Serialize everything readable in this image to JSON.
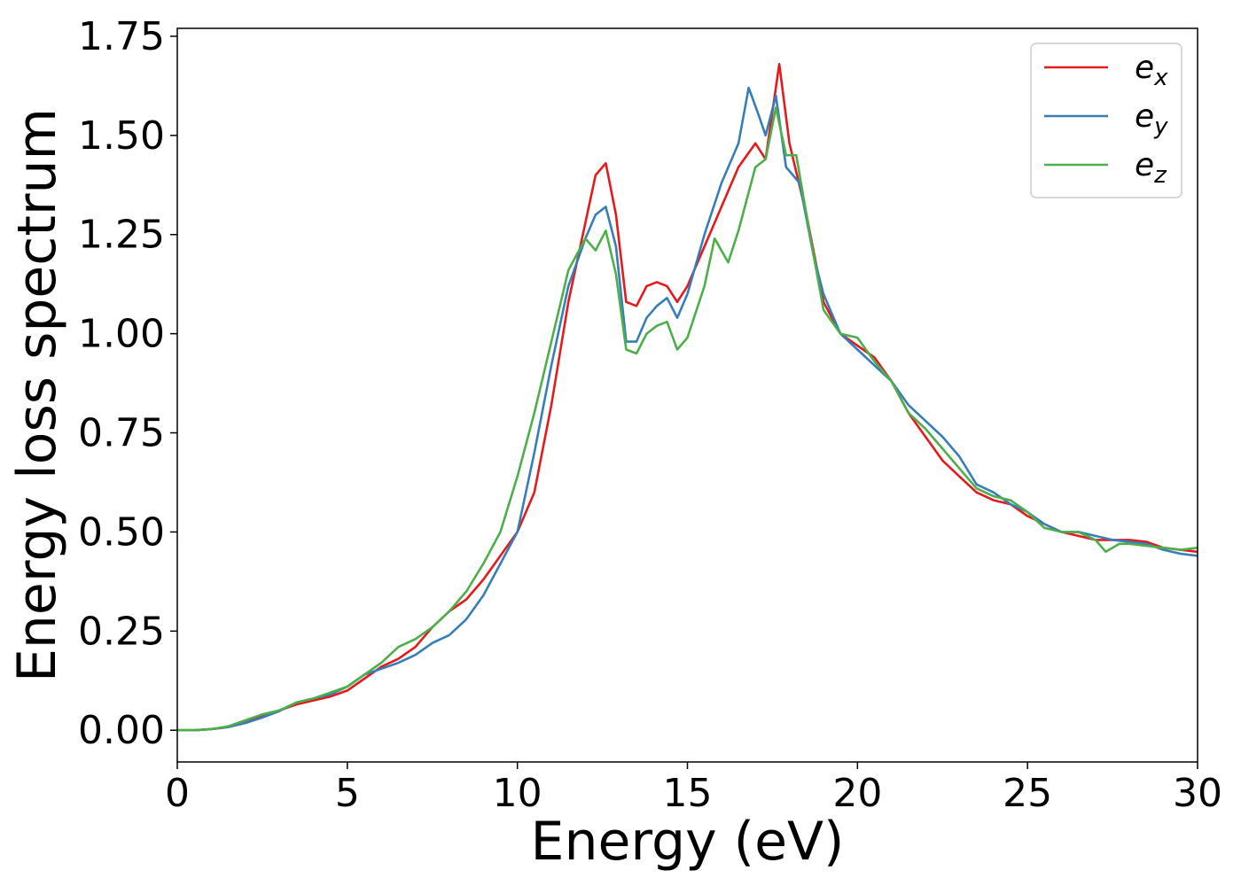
{
  "chart_data": {
    "type": "line",
    "title": "",
    "xlabel": "Energy (eV)",
    "ylabel": "Energy loss spectrum",
    "xlim": [
      0,
      30
    ],
    "ylim": [
      -0.08,
      1.77
    ],
    "xticks": [
      0,
      5,
      10,
      15,
      20,
      25,
      30
    ],
    "xtick_labels": [
      "0",
      "5",
      "10",
      "15",
      "20",
      "25",
      "30"
    ],
    "yticks": [
      0.0,
      0.25,
      0.5,
      0.75,
      1.0,
      1.25,
      1.5,
      1.75
    ],
    "ytick_labels": [
      "0.00",
      "0.25",
      "0.50",
      "0.75",
      "1.00",
      "1.25",
      "1.50",
      "1.75"
    ],
    "grid": false,
    "legend_position": "top-right",
    "series": [
      {
        "name": "e_x",
        "legend_base": "e",
        "legend_sub": "x",
        "color": "#e41a1c",
        "points": [
          [
            0,
            0
          ],
          [
            0.5,
            0.0
          ],
          [
            1,
            0.003
          ],
          [
            1.5,
            0.008
          ],
          [
            2,
            0.02
          ],
          [
            2.5,
            0.035
          ],
          [
            3,
            0.05
          ],
          [
            3.5,
            0.065
          ],
          [
            4,
            0.075
          ],
          [
            4.5,
            0.085
          ],
          [
            5,
            0.1
          ],
          [
            5.5,
            0.13
          ],
          [
            6,
            0.16
          ],
          [
            6.5,
            0.18
          ],
          [
            7,
            0.21
          ],
          [
            7.5,
            0.26
          ],
          [
            8,
            0.3
          ],
          [
            8.5,
            0.33
          ],
          [
            9,
            0.38
          ],
          [
            9.5,
            0.44
          ],
          [
            10,
            0.5
          ],
          [
            10.5,
            0.6
          ],
          [
            11,
            0.82
          ],
          [
            11.5,
            1.08
          ],
          [
            12,
            1.28
          ],
          [
            12.3,
            1.4
          ],
          [
            12.6,
            1.43
          ],
          [
            12.9,
            1.3
          ],
          [
            13.2,
            1.08
          ],
          [
            13.5,
            1.07
          ],
          [
            13.8,
            1.12
          ],
          [
            14.1,
            1.13
          ],
          [
            14.4,
            1.12
          ],
          [
            14.7,
            1.08
          ],
          [
            15,
            1.12
          ],
          [
            15.5,
            1.22
          ],
          [
            16,
            1.32
          ],
          [
            16.5,
            1.42
          ],
          [
            17,
            1.48
          ],
          [
            17.3,
            1.44
          ],
          [
            17.7,
            1.68
          ],
          [
            18,
            1.48
          ],
          [
            18.5,
            1.3
          ],
          [
            19,
            1.08
          ],
          [
            19.5,
            1.0
          ],
          [
            20,
            0.97
          ],
          [
            20.5,
            0.94
          ],
          [
            21,
            0.88
          ],
          [
            21.5,
            0.8
          ],
          [
            22,
            0.74
          ],
          [
            22.5,
            0.68
          ],
          [
            23,
            0.64
          ],
          [
            23.5,
            0.6
          ],
          [
            24,
            0.58
          ],
          [
            24.5,
            0.57
          ],
          [
            25,
            0.54
          ],
          [
            25.5,
            0.52
          ],
          [
            26,
            0.5
          ],
          [
            26.5,
            0.49
          ],
          [
            27,
            0.48
          ],
          [
            27.5,
            0.48
          ],
          [
            28,
            0.48
          ],
          [
            28.5,
            0.475
          ],
          [
            29,
            0.46
          ],
          [
            29.5,
            0.455
          ],
          [
            30,
            0.45
          ]
        ]
      },
      {
        "name": "e_y",
        "legend_base": "e",
        "legend_sub": "y",
        "color": "#377eb8",
        "points": [
          [
            0,
            0
          ],
          [
            0.5,
            0.0
          ],
          [
            1,
            0.003
          ],
          [
            1.5,
            0.008
          ],
          [
            2,
            0.018
          ],
          [
            2.5,
            0.032
          ],
          [
            3,
            0.048
          ],
          [
            3.5,
            0.07
          ],
          [
            4,
            0.08
          ],
          [
            4.5,
            0.09
          ],
          [
            5,
            0.11
          ],
          [
            5.5,
            0.14
          ],
          [
            6,
            0.155
          ],
          [
            6.5,
            0.17
          ],
          [
            7,
            0.19
          ],
          [
            7.5,
            0.22
          ],
          [
            8,
            0.24
          ],
          [
            8.5,
            0.28
          ],
          [
            9,
            0.34
          ],
          [
            9.5,
            0.42
          ],
          [
            10,
            0.5
          ],
          [
            10.5,
            0.7
          ],
          [
            11,
            0.92
          ],
          [
            11.5,
            1.12
          ],
          [
            12,
            1.24
          ],
          [
            12.3,
            1.3
          ],
          [
            12.6,
            1.32
          ],
          [
            12.9,
            1.22
          ],
          [
            13.2,
            0.98
          ],
          [
            13.5,
            0.98
          ],
          [
            13.8,
            1.04
          ],
          [
            14.1,
            1.07
          ],
          [
            14.4,
            1.09
          ],
          [
            14.7,
            1.04
          ],
          [
            15,
            1.1
          ],
          [
            15.5,
            1.25
          ],
          [
            16,
            1.38
          ],
          [
            16.5,
            1.48
          ],
          [
            16.8,
            1.62
          ],
          [
            17.1,
            1.55
          ],
          [
            17.3,
            1.5
          ],
          [
            17.6,
            1.6
          ],
          [
            17.9,
            1.42
          ],
          [
            18.3,
            1.38
          ],
          [
            18.7,
            1.2
          ],
          [
            19,
            1.1
          ],
          [
            19.5,
            1.0
          ],
          [
            20,
            0.96
          ],
          [
            20.5,
            0.92
          ],
          [
            21,
            0.88
          ],
          [
            21.5,
            0.82
          ],
          [
            22,
            0.78
          ],
          [
            22.5,
            0.74
          ],
          [
            23,
            0.69
          ],
          [
            23.5,
            0.62
          ],
          [
            24,
            0.6
          ],
          [
            24.5,
            0.57
          ],
          [
            25,
            0.55
          ],
          [
            25.5,
            0.52
          ],
          [
            26,
            0.5
          ],
          [
            26.5,
            0.5
          ],
          [
            27,
            0.49
          ],
          [
            27.5,
            0.48
          ],
          [
            28,
            0.475
          ],
          [
            28.5,
            0.47
          ],
          [
            29,
            0.455
          ],
          [
            29.5,
            0.445
          ],
          [
            30,
            0.44
          ]
        ]
      },
      {
        "name": "e_z",
        "legend_base": "e",
        "legend_sub": "z",
        "color": "#4daf4a",
        "points": [
          [
            0,
            0
          ],
          [
            0.5,
            0.0
          ],
          [
            1,
            0.003
          ],
          [
            1.5,
            0.01
          ],
          [
            2,
            0.025
          ],
          [
            2.5,
            0.04
          ],
          [
            3,
            0.05
          ],
          [
            3.5,
            0.07
          ],
          [
            4,
            0.08
          ],
          [
            4.5,
            0.095
          ],
          [
            5,
            0.11
          ],
          [
            5.5,
            0.14
          ],
          [
            6,
            0.17
          ],
          [
            6.5,
            0.21
          ],
          [
            7,
            0.23
          ],
          [
            7.5,
            0.26
          ],
          [
            8,
            0.3
          ],
          [
            8.5,
            0.35
          ],
          [
            9,
            0.42
          ],
          [
            9.5,
            0.5
          ],
          [
            10,
            0.64
          ],
          [
            10.5,
            0.8
          ],
          [
            11,
            0.98
          ],
          [
            11.5,
            1.16
          ],
          [
            12,
            1.24
          ],
          [
            12.3,
            1.21
          ],
          [
            12.6,
            1.26
          ],
          [
            12.9,
            1.15
          ],
          [
            13.2,
            0.96
          ],
          [
            13.5,
            0.95
          ],
          [
            13.8,
            1.0
          ],
          [
            14.1,
            1.02
          ],
          [
            14.4,
            1.03
          ],
          [
            14.7,
            0.96
          ],
          [
            15,
            0.99
          ],
          [
            15.5,
            1.12
          ],
          [
            15.8,
            1.24
          ],
          [
            16.2,
            1.18
          ],
          [
            16.5,
            1.26
          ],
          [
            17,
            1.42
          ],
          [
            17.3,
            1.44
          ],
          [
            17.6,
            1.57
          ],
          [
            17.9,
            1.45
          ],
          [
            18.2,
            1.45
          ],
          [
            18.6,
            1.25
          ],
          [
            19,
            1.06
          ],
          [
            19.5,
            1.0
          ],
          [
            20,
            0.99
          ],
          [
            20.5,
            0.93
          ],
          [
            21,
            0.88
          ],
          [
            21.5,
            0.8
          ],
          [
            22,
            0.76
          ],
          [
            22.5,
            0.71
          ],
          [
            23,
            0.66
          ],
          [
            23.5,
            0.61
          ],
          [
            24,
            0.59
          ],
          [
            24.5,
            0.58
          ],
          [
            25,
            0.55
          ],
          [
            25.5,
            0.51
          ],
          [
            26,
            0.5
          ],
          [
            26.5,
            0.5
          ],
          [
            27,
            0.48
          ],
          [
            27.3,
            0.45
          ],
          [
            27.7,
            0.47
          ],
          [
            28,
            0.47
          ],
          [
            28.5,
            0.465
          ],
          [
            29,
            0.46
          ],
          [
            29.5,
            0.455
          ],
          [
            30,
            0.46
          ]
        ]
      }
    ]
  }
}
